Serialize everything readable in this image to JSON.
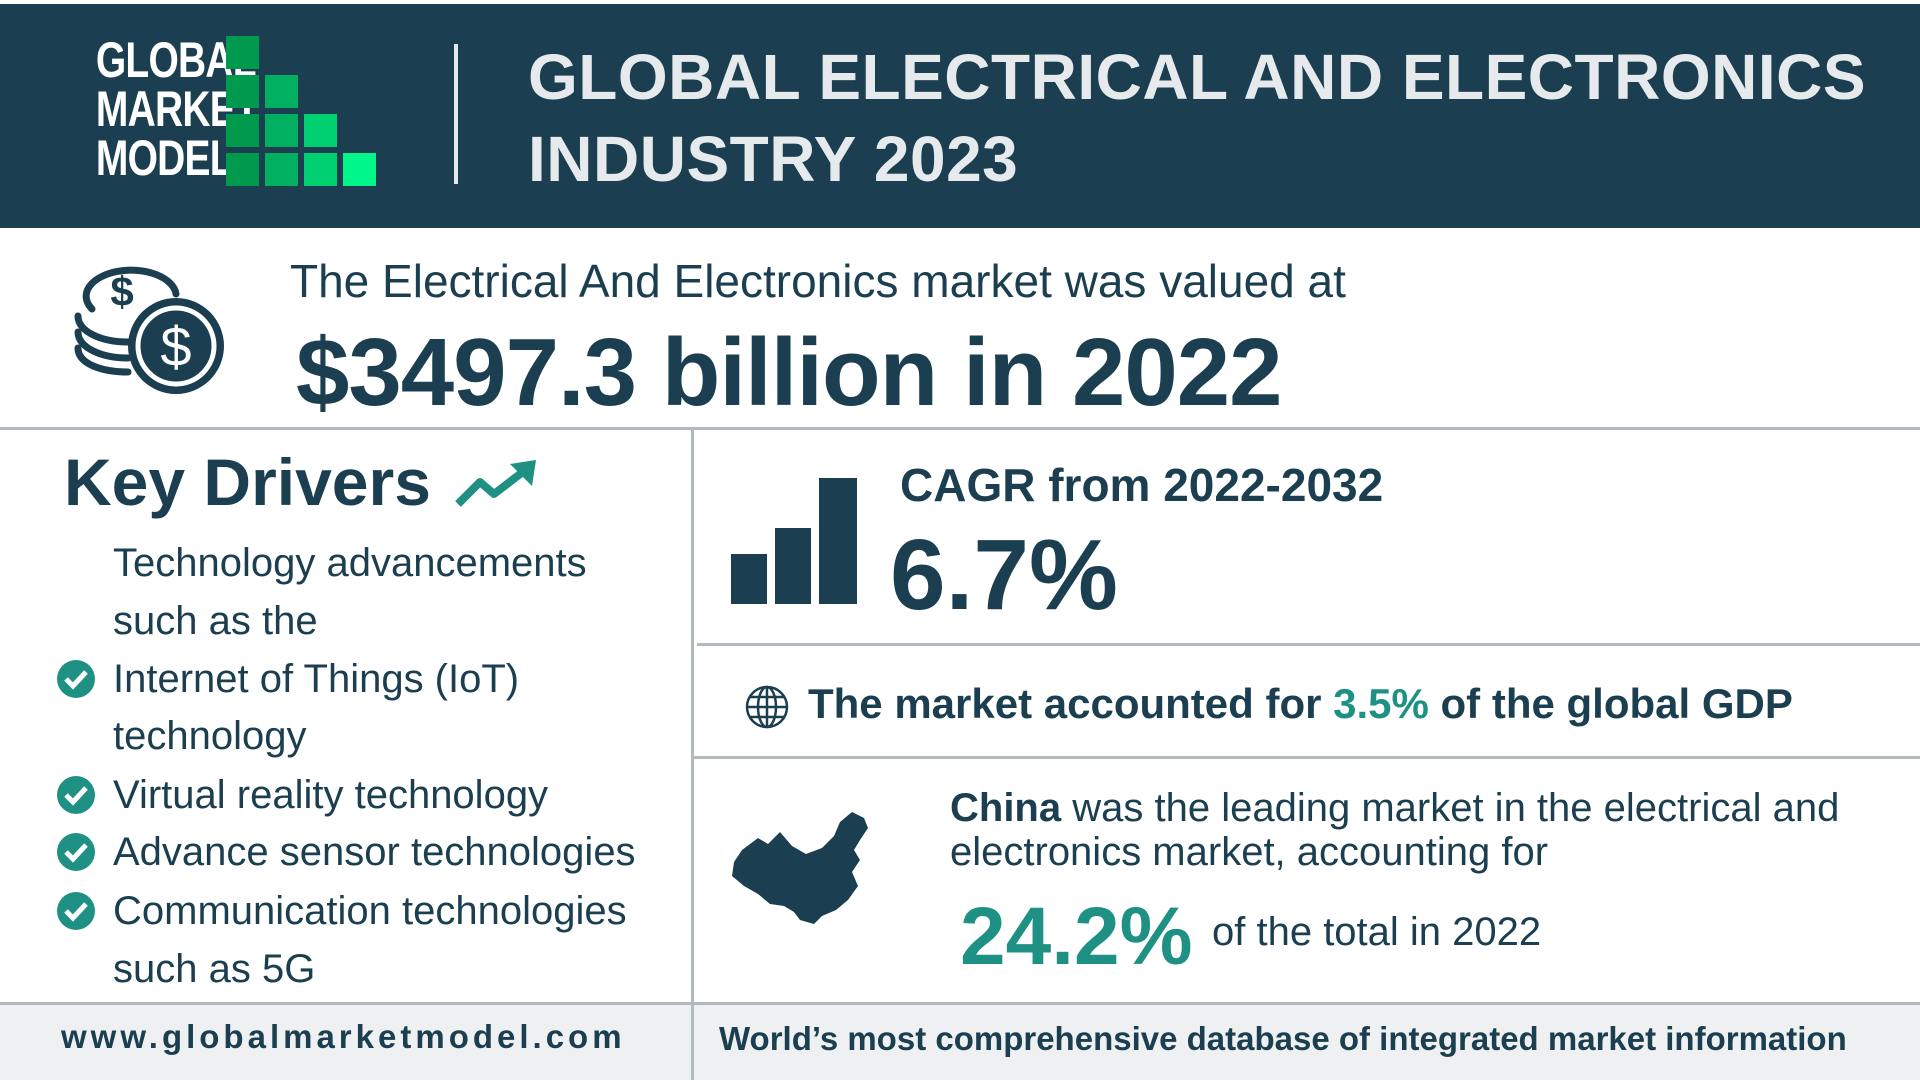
{
  "header": {
    "logo_lines": [
      "GLOBAL",
      "MARKET",
      "MODEL"
    ],
    "title_lines": [
      "GLOBAL ELECTRICAL AND ELECTRONICS",
      "INDUSTRY 2023"
    ]
  },
  "valuation": {
    "intro": "The Electrical And Electronics market was valued at",
    "value": "$3497.3 billion in 2022",
    "icon": "coins-dollar-icon"
  },
  "key_drivers": {
    "title": "Key Drivers",
    "icon": "trending-up-icon",
    "lines": [
      {
        "text": "Technology advancements",
        "check": false
      },
      {
        "text": "such as the",
        "check": false
      },
      {
        "text": "Internet of Things (IoT)",
        "check": true
      },
      {
        "text": "technology",
        "check": false
      },
      {
        "text": "Virtual reality technology",
        "check": true
      },
      {
        "text": "Advance sensor technologies",
        "check": true
      },
      {
        "text": "Communication technologies",
        "check": true
      },
      {
        "text": "such as 5G",
        "check": false
      }
    ]
  },
  "cagr": {
    "label": "CAGR from 2022-2032",
    "value": "6.7%",
    "icon": "bar-chart-icon"
  },
  "gdp": {
    "prefix": "The market accounted for ",
    "highlight": "3.5%",
    "suffix": " of the global GDP",
    "icon": "globe-icon"
  },
  "china": {
    "bold": "China",
    "text": " was the leading market in the electrical and electronics market, accounting for",
    "share": "24.2%",
    "tail": "of the total in 2022",
    "icon": "china-map-icon"
  },
  "footer": {
    "url": "www.globalmarketmodel.com",
    "tagline": "World’s most comprehensive database of integrated market information"
  },
  "colors": {
    "navy": "#1b3f50",
    "teal": "#1f9184",
    "logo_greens": [
      "#009a4e",
      "#00b060",
      "#00d072",
      "#00f58a"
    ]
  }
}
